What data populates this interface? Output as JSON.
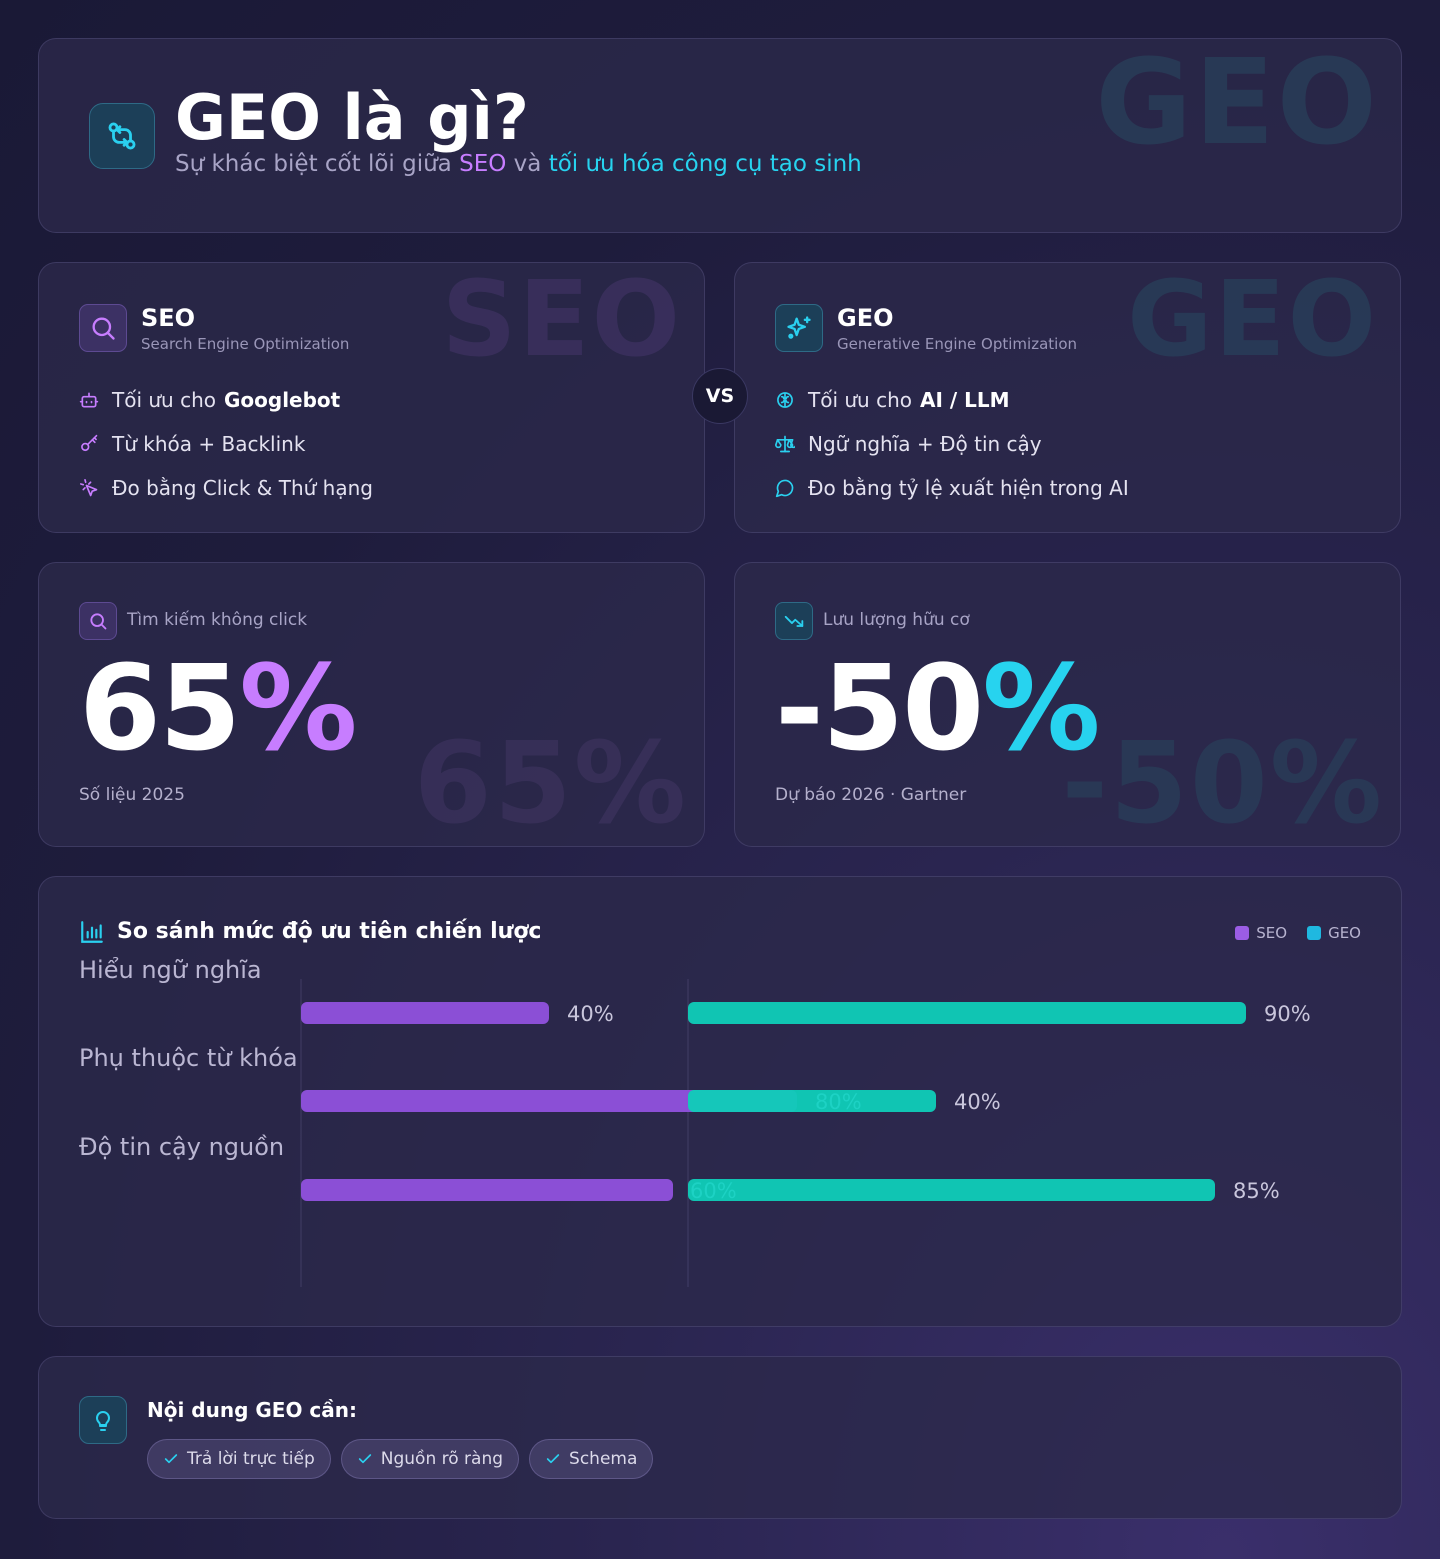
{
  "header": {
    "title": "GEO là gì?",
    "subtitle_prefix": "Sự khác biệt cốt lõi giữa",
    "subtitle_seo": "SEO",
    "subtitle_and": "và",
    "subtitle_geo": "tối ưu hóa công cụ tạo sinh",
    "watermark": "GEO",
    "icon": "git-compare-icon"
  },
  "seo_card": {
    "title": "SEO",
    "subtitle": "Search Engine Optimization",
    "watermark": "SEO",
    "icon": "search-icon",
    "items": [
      {
        "icon": "robot-icon",
        "text": "Tối ưu cho",
        "bold": "Googlebot"
      },
      {
        "icon": "key-icon",
        "text": "Từ khóa + Backlink"
      },
      {
        "icon": "click-icon",
        "text": "Đo bằng Click & Thứ hạng"
      }
    ]
  },
  "vs_label": "VS",
  "geo_card": {
    "title": "GEO",
    "subtitle": "Generative Engine Optimization",
    "watermark": "GEO",
    "icon": "sparkles-icon",
    "items": [
      {
        "icon": "brain-icon",
        "text": "Tối ưu cho",
        "bold": "AI / LLM"
      },
      {
        "icon": "scale-icon",
        "text": "Ngữ nghĩa + Độ tin cậy"
      },
      {
        "icon": "chat-icon",
        "text": "Đo bằng tỷ lệ xuất hiện trong AI"
      }
    ]
  },
  "stat_seo": {
    "label": "Tìm kiếm không click",
    "value": "65",
    "unit": "%",
    "note": "Số liệu 2025",
    "watermark": "65%",
    "icon": "search-icon"
  },
  "stat_geo": {
    "label": "Lưu lượng hữu cơ",
    "value": "-50",
    "unit": "%",
    "note": "Dự báo 2026 · Gartner",
    "watermark": "-50%",
    "icon": "trending-down-icon"
  },
  "chart_data": {
    "type": "bar",
    "title": "So sánh mức độ ưu tiên chiến lược",
    "categories": [
      "Hiểu ngữ nghĩa",
      "Phụ thuộc từ khóa",
      "Độ tin cậy nguồn"
    ],
    "series": [
      {
        "name": "SEO",
        "values": [
          40,
          80,
          60
        ],
        "color": "#8b4fd6"
      },
      {
        "name": "GEO",
        "values": [
          90,
          40,
          85
        ],
        "color": "#0fcdb8"
      }
    ],
    "labels": {
      "SEO": [
        "40%",
        "80%",
        "60%"
      ],
      "GEO": [
        "90%",
        "40%",
        "85%"
      ]
    },
    "legend": "top-right",
    "colors": {
      "seo": "#9b5de5",
      "geo": "#1fb8e0"
    }
  },
  "tips": {
    "title": "Nội dung GEO cần:",
    "icon": "lightbulb-icon",
    "tags": [
      "Trả lời trực tiếp",
      "Nguồn rõ ràng",
      "Schema"
    ]
  }
}
